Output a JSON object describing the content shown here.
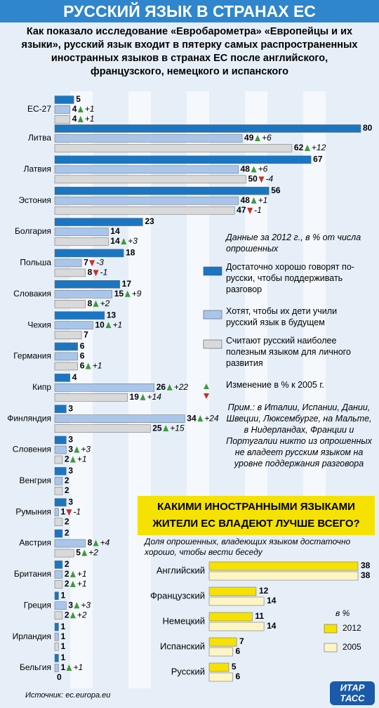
{
  "chart_data": [
    {
      "type": "bar",
      "orientation": "horizontal",
      "title": "РУССКИЙ ЯЗЫК В СТРАНАХ ЕС",
      "subtitle": "Как показало исследование «Евробарометра» «Европейцы и их языки», русский язык входит в пятерку самых распространенных иностранных языков в странах ЕС после английского, французского, немецкого и испанского",
      "legend_title": "Данные за 2012 г., в % от числа опрошенных",
      "change_legend": "Изменение в % к 2005 г.",
      "note": "Прим.: в Италии, Испании, Дании, Швеции, Люксембурге, на Мальте, в Нидерландах, Франции и Португалии никто из опрошенных не владеет русским языком на уровне поддержания разговора",
      "source": "Источник: ec.europa.eu",
      "categories": [
        "ЕС-27",
        "Литва",
        "Латвия",
        "Эстония",
        "Болгария",
        "Польша",
        "Словакия",
        "Чехия",
        "Германия",
        "Кипр",
        "Финляндия",
        "Словения",
        "Венгрия",
        "Румыния",
        "Австрия",
        "Британия",
        "Греция",
        "Ирландия",
        "Бельгия"
      ],
      "xlim": [
        0,
        80
      ],
      "series": [
        {
          "name": "Достаточно хорошо говорят по-русски, чтобы поддерживать разговор",
          "color": "#1a76c2",
          "values": [
            5,
            80,
            67,
            56,
            23,
            18,
            17,
            13,
            6,
            4,
            3,
            3,
            3,
            3,
            2,
            2,
            1,
            1,
            1
          ]
        },
        {
          "name": "Хотят, чтобы их дети учили русский язык в будущем",
          "color": "#a9c6ea",
          "values": [
            4,
            49,
            48,
            48,
            14,
            7,
            15,
            10,
            6,
            26,
            34,
            3,
            2,
            1,
            8,
            2,
            3,
            1,
            1
          ],
          "changes": [
            1,
            6,
            6,
            1,
            null,
            -3,
            9,
            1,
            null,
            22,
            24,
            3,
            null,
            -1,
            4,
            1,
            3,
            null,
            1
          ],
          "change_labels": [
            "+1",
            "+6",
            "+6",
            "+1",
            null,
            "-3",
            "+9",
            "+1",
            null,
            "+22",
            "+24",
            "+3",
            null,
            "-1",
            "+4",
            "+1",
            "+3",
            null,
            "+1"
          ]
        },
        {
          "name": "Считают русский наиболее полезным языком для личного развития",
          "color": "#d9d9d9",
          "values": [
            4,
            62,
            50,
            47,
            14,
            8,
            8,
            7,
            6,
            19,
            25,
            2,
            2,
            2,
            5,
            2,
            2,
            1,
            0
          ],
          "changes": [
            1,
            12,
            -4,
            -1,
            3,
            -1,
            2,
            null,
            1,
            14,
            15,
            1,
            null,
            null,
            2,
            1,
            2,
            null,
            null
          ],
          "change_labels": [
            "+1",
            "+12",
            "-4",
            "-1",
            "+3",
            "-1",
            "+2",
            null,
            "+1",
            "+14",
            "+15",
            "+1",
            null,
            null,
            "+2",
            "+1",
            "+2",
            null,
            null
          ]
        }
      ]
    },
    {
      "type": "bar",
      "orientation": "horizontal",
      "title": "КАКИМИ ИНОСТРАННЫМИ ЯЗЫКАМИ ЖИТЕЛИ ЕС ВЛАДЕЮТ ЛУЧШЕ ВСЕГО?",
      "subtitle": "Доля опрошенных, владеющих языком достаточно хорошо, чтобы вести беседу",
      "unit": "в %",
      "categories": [
        "Английский",
        "Французский",
        "Немецкий",
        "Испанский",
        "Русский"
      ],
      "xlim": [
        0,
        38
      ],
      "series": [
        {
          "name": "2012",
          "color": "#f6e200",
          "values": [
            38,
            12,
            11,
            7,
            5
          ]
        },
        {
          "name": "2005",
          "color": "#fdf6c4",
          "values": [
            38,
            14,
            14,
            6,
            6
          ]
        }
      ]
    }
  ],
  "logo": [
    "ИТАР",
    "ТАСС"
  ]
}
